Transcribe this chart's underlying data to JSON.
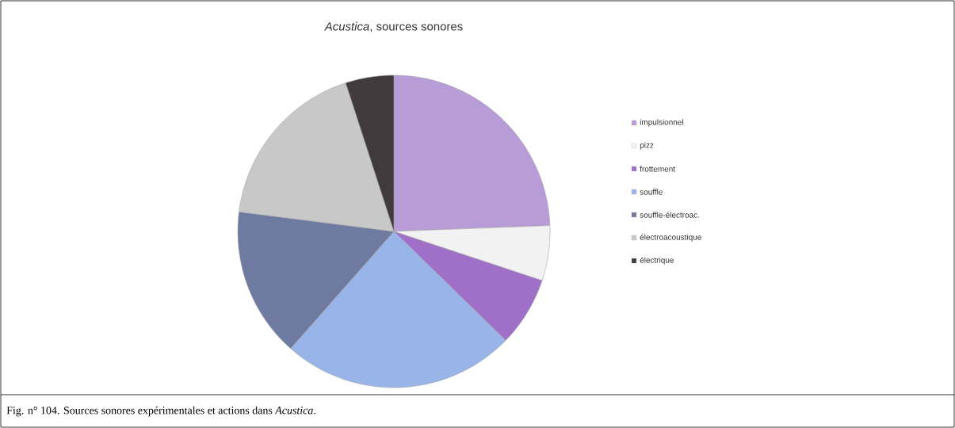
{
  "chart_data": {
    "type": "pie",
    "title": "*Acustica*, sources sonores",
    "categories": [
      "impulsionnel",
      "pizz",
      "frottement",
      "souffle",
      "souffle-électroac.",
      "électroacoustique",
      "électrique"
    ],
    "values": [
      24.4,
      5.7,
      7.2,
      24.2,
      15.5,
      18.0,
      5.0
    ],
    "colors": [
      "#b89cd8",
      "#f2f2f2",
      "#a070c8",
      "#98b4e8",
      "#6e7aa0",
      "#c8c8c8",
      "#403a3c"
    ],
    "legend": "right",
    "annotations": [
      "Fig. n° 104. Sources sonores expérimentales et actions dans *Acustica*."
    ]
  }
}
